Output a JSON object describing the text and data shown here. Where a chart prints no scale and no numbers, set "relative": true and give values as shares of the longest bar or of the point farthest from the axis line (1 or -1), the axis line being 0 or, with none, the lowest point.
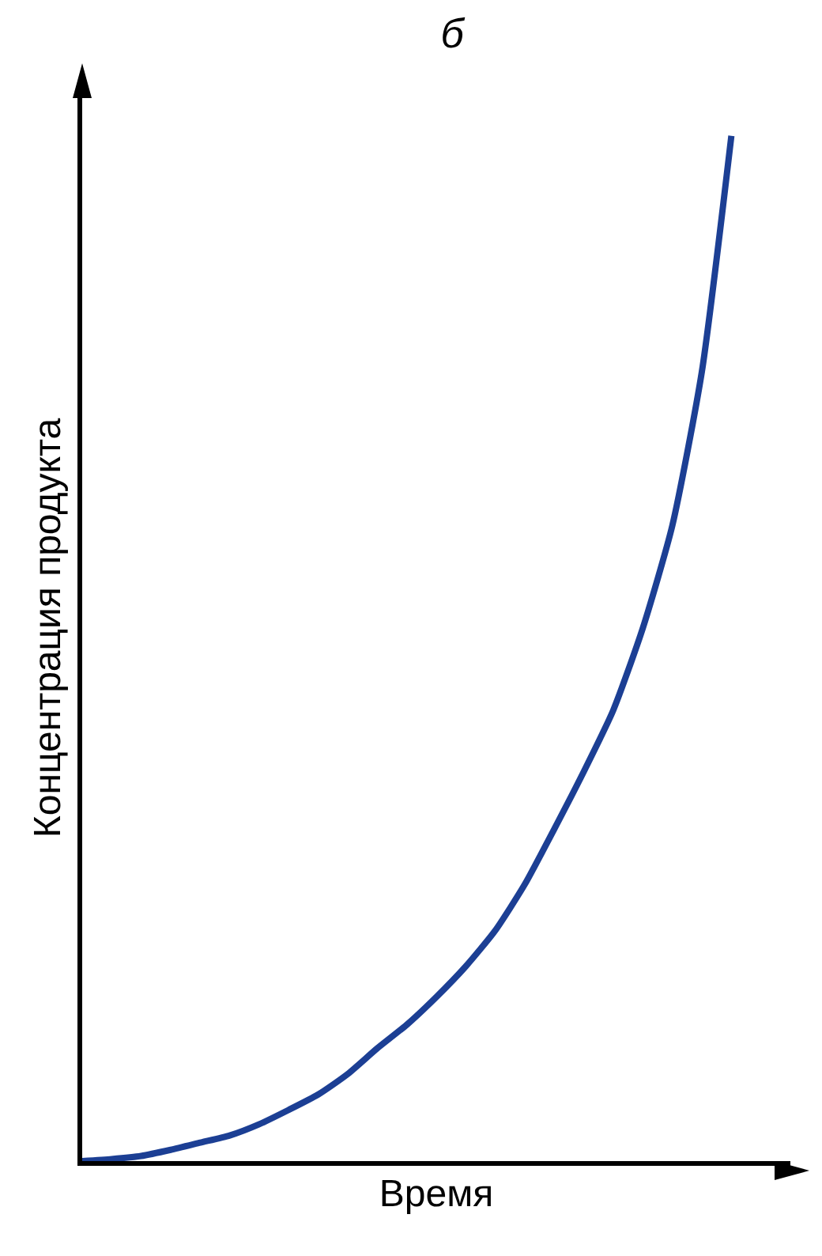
{
  "chart_data": {
    "type": "line",
    "title": "б",
    "xlabel": "Время",
    "ylabel": "Концентрация продукта",
    "relative": true,
    "marker": "none",
    "line_style": "solid",
    "categories": [
      null,
      null,
      null,
      null,
      null,
      null,
      null,
      null,
      null,
      null,
      null,
      null,
      null,
      null,
      null,
      null,
      null,
      null,
      null,
      null,
      null,
      null,
      null,
      null,
      null
    ],
    "series": [
      {
        "color": "#1c3f94",
        "values": [
          0,
          0.002,
          0.005,
          0.011,
          0.018,
          0.025,
          0.036,
          0.05,
          0.065,
          0.085,
          0.11,
          0.133,
          0.16,
          0.19,
          0.225,
          0.27,
          0.324,
          0.38,
          0.44,
          0.52,
          0.62,
          0.77,
          1,
          null,
          null
        ]
      }
    ]
  }
}
